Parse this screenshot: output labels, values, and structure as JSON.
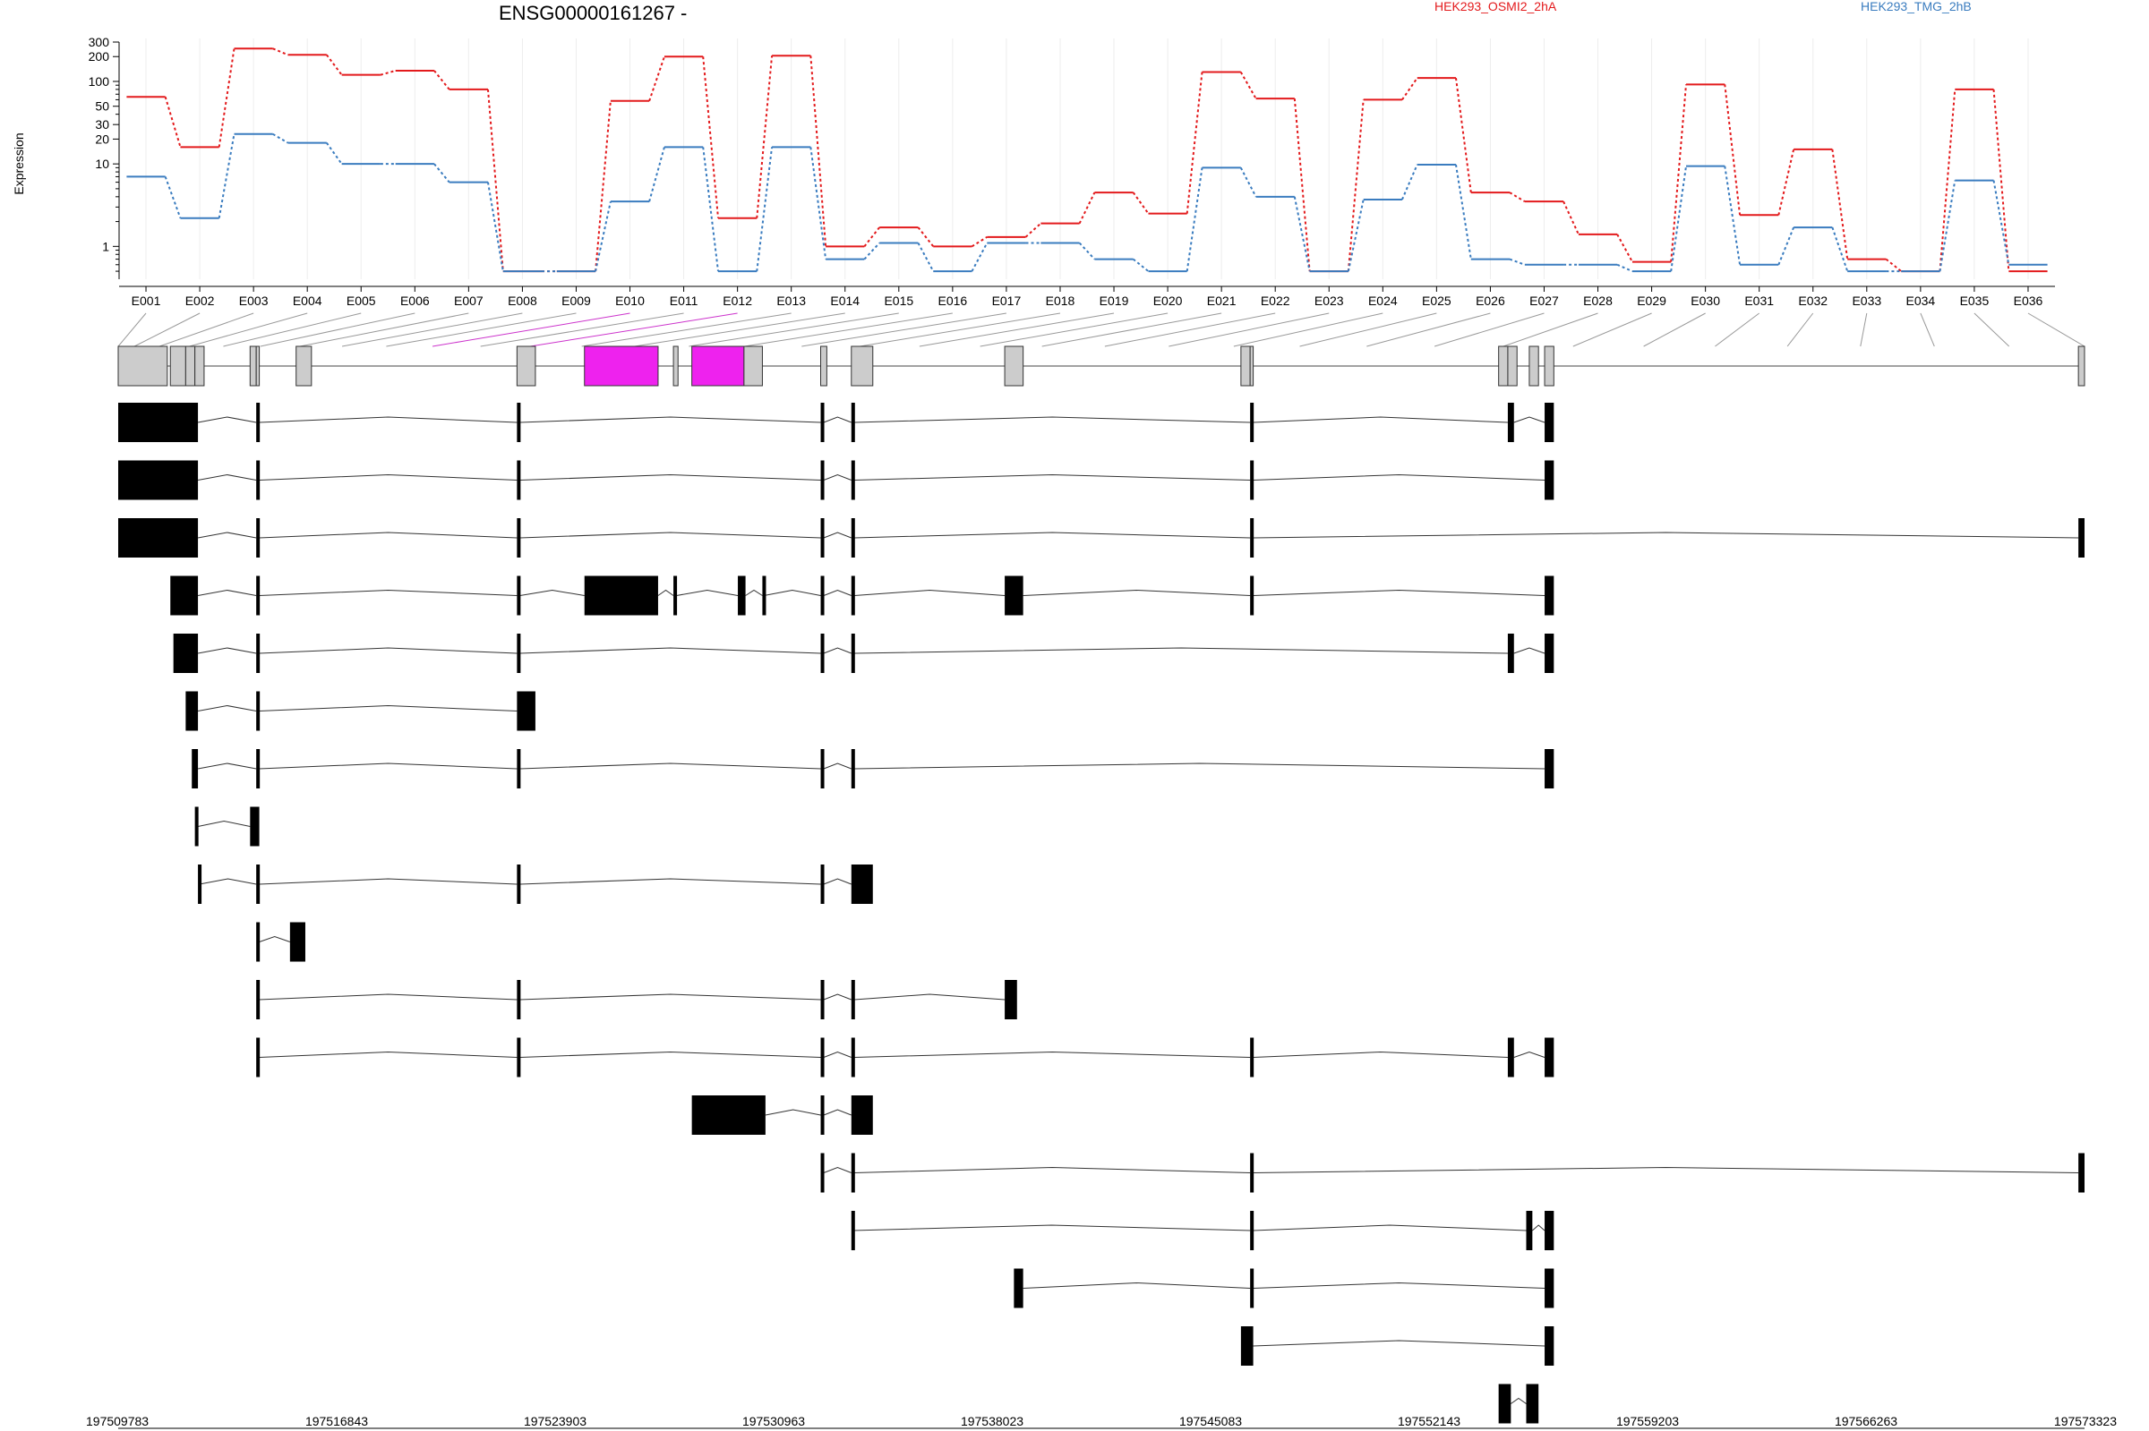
{
  "chart_data": {
    "type": "line",
    "title": "ENSG00000161267 -",
    "ylabel": "Expression",
    "yscale": "log",
    "yticks": [
      "1",
      "10",
      "20",
      "30",
      "50",
      "100",
      "200",
      "300"
    ],
    "exons": [
      "E001",
      "E002",
      "E003",
      "E004",
      "E005",
      "E006",
      "E007",
      "E008",
      "E009",
      "E010",
      "E011",
      "E012",
      "E013",
      "E014",
      "E015",
      "E016",
      "E017",
      "E018",
      "E019",
      "E020",
      "E021",
      "E022",
      "E023",
      "E024",
      "E025",
      "E026",
      "E027",
      "E028",
      "E029",
      "E030",
      "E031",
      "E032",
      "E033",
      "E034",
      "E035",
      "E036"
    ],
    "highlighted_exons": [
      "E010",
      "E012"
    ],
    "series": [
      {
        "name": "HEK293_OSMI2_2hA",
        "color": "#e31a1c",
        "values": [
          65,
          16,
          250,
          210,
          120,
          135,
          80,
          0.5,
          0.5,
          58,
          200,
          2.2,
          205,
          1.0,
          1.7,
          1.0,
          1.3,
          1.9,
          4.5,
          2.5,
          130,
          62,
          0.5,
          60,
          110,
          4.5,
          3.5,
          1.4,
          0.65,
          92,
          2.4,
          15,
          0.7,
          0.5,
          80,
          0.5
        ]
      },
      {
        "name": "HEK293_TMG_2hB",
        "color": "#3a7cbf",
        "values": [
          7,
          2.2,
          23,
          18,
          10,
          10,
          6,
          0.5,
          0.5,
          3.5,
          16,
          0.5,
          16,
          0.7,
          1.1,
          0.5,
          1.1,
          1.1,
          0.7,
          0.5,
          9,
          4,
          0.5,
          3.7,
          9.8,
          0.7,
          0.6,
          0.6,
          0.5,
          9.4,
          0.6,
          1.7,
          0.5,
          0.5,
          6.3,
          0.6
        ]
      }
    ],
    "genomic_coordinates": [
      "197509783",
      "197516843",
      "197523903",
      "197530963",
      "197538023",
      "197545083",
      "197552143",
      "197559203",
      "197566263",
      "197573323"
    ],
    "gene_model": {
      "exons": [
        [
          0,
          1.6
        ],
        [
          1.7,
          2.2
        ],
        [
          2.2,
          2.5
        ],
        [
          2.5,
          2.8
        ],
        [
          4.3,
          4.5
        ],
        [
          4.5,
          4.6
        ],
        [
          5.8,
          6.3
        ],
        [
          13.0,
          13.6
        ],
        [
          15.2,
          17.6
        ],
        [
          18.1,
          18.25
        ],
        [
          18.7,
          20.4
        ],
        [
          20.4,
          21.0
        ],
        [
          22.9,
          23.1
        ],
        [
          23.9,
          24.6
        ],
        [
          28.9,
          29.5
        ],
        [
          36.6,
          36.9
        ],
        [
          36.9,
          37.0
        ],
        [
          45.0,
          45.3
        ],
        [
          45.3,
          45.6
        ],
        [
          46.0,
          46.3
        ],
        [
          46.5,
          46.8
        ],
        [
          63.9,
          64.1
        ]
      ],
      "highlighted": [
        [
          15.2,
          17.6
        ],
        [
          18.7,
          20.4
        ]
      ]
    },
    "transcripts": [
      [
        [
          0,
          2.6
        ],
        [
          4.5,
          4.6
        ],
        [
          13.0,
          13.1
        ],
        [
          22.9,
          23.0
        ],
        [
          23.9,
          24.0
        ],
        [
          36.9,
          37.0
        ],
        [
          45.3,
          45.5
        ],
        [
          46.5,
          46.8
        ]
      ],
      [
        [
          0,
          2.6
        ],
        [
          4.5,
          4.6
        ],
        [
          13.0,
          13.1
        ],
        [
          22.9,
          23.0
        ],
        [
          23.9,
          24.0
        ],
        [
          36.9,
          37.0
        ],
        [
          46.5,
          46.8
        ]
      ],
      [
        [
          0,
          2.6
        ],
        [
          4.5,
          4.6
        ],
        [
          13.0,
          13.1
        ],
        [
          22.9,
          23.0
        ],
        [
          23.9,
          24.0
        ],
        [
          36.9,
          37.0
        ],
        [
          63.9,
          64.1
        ]
      ],
      [
        [
          1.7,
          2.6
        ],
        [
          4.5,
          4.6
        ],
        [
          13.0,
          13.1
        ],
        [
          15.2,
          17.6
        ],
        [
          18.1,
          18.2
        ],
        [
          20.2,
          20.45
        ],
        [
          21.0,
          21.05
        ],
        [
          22.9,
          23.0
        ],
        [
          23.9,
          24.0
        ],
        [
          28.9,
          29.5
        ],
        [
          36.9,
          37.0
        ],
        [
          46.5,
          46.8
        ]
      ],
      [
        [
          1.8,
          2.6
        ],
        [
          4.5,
          4.6
        ],
        [
          13.0,
          13.1
        ],
        [
          22.9,
          23.0
        ],
        [
          23.9,
          24.0
        ],
        [
          45.3,
          45.5
        ],
        [
          46.5,
          46.8
        ]
      ],
      [
        [
          2.2,
          2.6
        ],
        [
          4.5,
          4.6
        ],
        [
          13.0,
          13.6
        ]
      ],
      [
        [
          2.4,
          2.6
        ],
        [
          4.5,
          4.6
        ],
        [
          13.0,
          13.1
        ],
        [
          22.9,
          23.0
        ],
        [
          23.9,
          24.0
        ],
        [
          46.5,
          46.8
        ]
      ],
      [
        [
          2.5,
          2.6
        ],
        [
          4.3,
          4.6
        ]
      ],
      [
        [
          2.6,
          2.65
        ],
        [
          4.5,
          4.6
        ],
        [
          13.0,
          13.1
        ],
        [
          22.9,
          23.0
        ],
        [
          23.9,
          24.6
        ]
      ],
      [
        [
          4.5,
          4.6
        ],
        [
          5.6,
          6.1
        ]
      ],
      [
        [
          4.5,
          4.6
        ],
        [
          13.0,
          13.1
        ],
        [
          22.9,
          23.0
        ],
        [
          23.9,
          24.0
        ],
        [
          28.9,
          29.3
        ]
      ],
      [
        [
          4.5,
          4.6
        ],
        [
          13.0,
          13.1
        ],
        [
          22.9,
          23.0
        ],
        [
          23.9,
          24.0
        ],
        [
          36.9,
          37.0
        ],
        [
          45.3,
          45.5
        ],
        [
          46.5,
          46.8
        ]
      ],
      [
        [
          18.7,
          21.1
        ],
        [
          22.9,
          23.0
        ],
        [
          23.9,
          24.6
        ]
      ],
      [
        [
          22.9,
          23.0
        ],
        [
          23.9,
          24.0
        ],
        [
          36.9,
          37.0
        ],
        [
          63.9,
          64.1
        ]
      ],
      [
        [
          23.9,
          23.95
        ],
        [
          36.9,
          37.0
        ],
        [
          45.9,
          46.1
        ],
        [
          46.5,
          46.8
        ]
      ],
      [
        [
          29.2,
          29.5
        ],
        [
          36.9,
          37.0
        ],
        [
          46.5,
          46.8
        ]
      ],
      [
        [
          36.6,
          37.0
        ],
        [
          46.5,
          46.8
        ]
      ],
      [
        [
          45.0,
          45.4
        ],
        [
          45.9,
          46.3
        ]
      ]
    ]
  }
}
